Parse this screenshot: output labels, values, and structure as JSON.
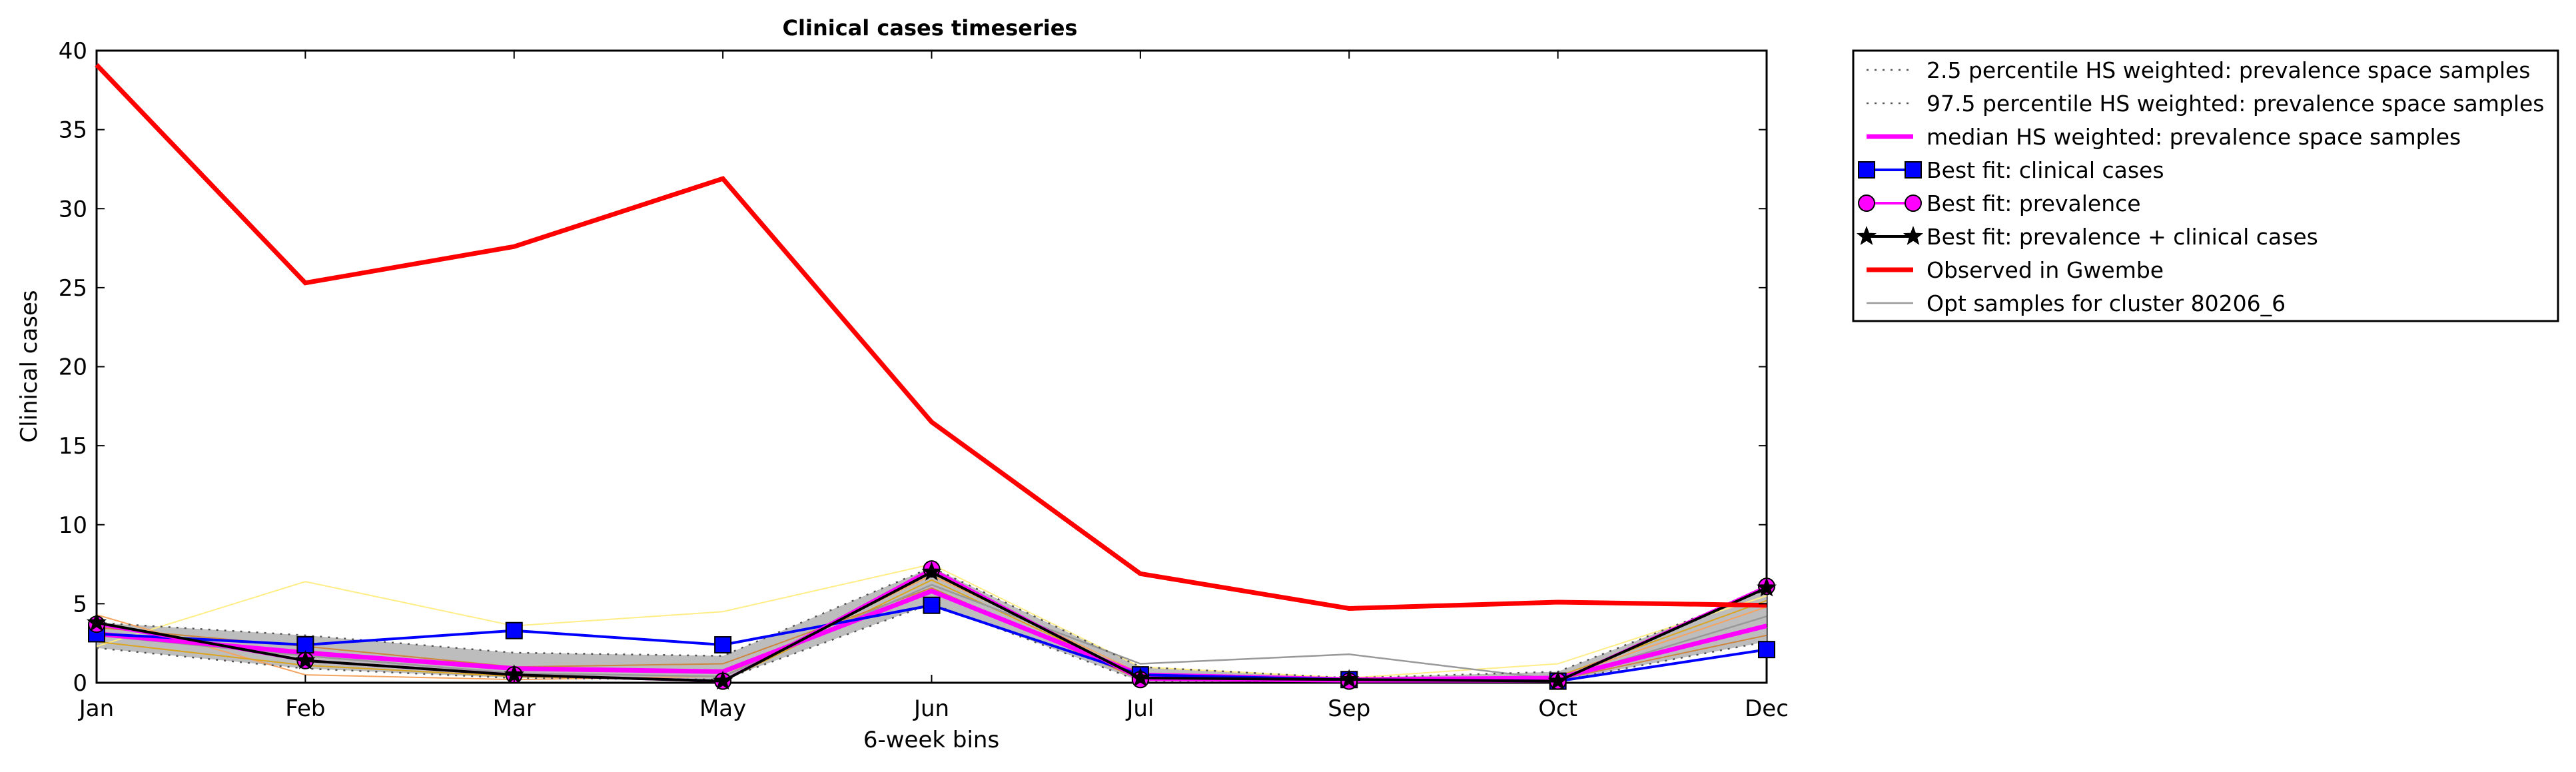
{
  "chart_data": {
    "type": "line",
    "title": "Clinical cases timeseries",
    "xlabel": "6-week bins",
    "ylabel": "Clinical cases",
    "categories": [
      "Jan",
      "Feb",
      "Mar",
      "May",
      "Jun",
      "Jul",
      "Sep",
      "Oct",
      "Dec"
    ],
    "yticks": [
      "0",
      "5",
      "10",
      "15",
      "20",
      "25",
      "30",
      "35",
      "40"
    ],
    "ylim": [
      0,
      40
    ],
    "legend_position": "outside-right",
    "grid": false,
    "series": [
      {
        "name": "2.5 percentile HS weighted: prevalence space samples",
        "color": "#555555",
        "style": "dotted",
        "values": [
          2.2,
          0.9,
          0.3,
          0.2,
          5.0,
          0.1,
          0.1,
          0.1,
          2.6
        ]
      },
      {
        "name": "97.5 percentile HS weighted: prevalence space samples",
        "color": "#555555",
        "style": "dotted",
        "values": [
          3.8,
          3.0,
          1.9,
          1.7,
          7.3,
          1.0,
          0.3,
          0.7,
          5.9
        ]
      },
      {
        "name": "median HS weighted: prevalence space samples",
        "color": "#ff00ff",
        "style": "solid",
        "values": [
          3.1,
          1.9,
          0.9,
          0.7,
          5.8,
          0.5,
          0.2,
          0.3,
          3.6
        ]
      },
      {
        "name": "Best fit: clinical cases",
        "color": "#0000ff",
        "marker": "square",
        "values": [
          3.1,
          2.4,
          3.3,
          2.4,
          4.9,
          0.5,
          0.2,
          0.1,
          2.1
        ]
      },
      {
        "name": "Best fit: prevalence",
        "color": "#ff00ff",
        "marker": "circle",
        "values": [
          3.7,
          1.4,
          0.5,
          0.1,
          7.2,
          0.2,
          0.1,
          0.1,
          6.1
        ]
      },
      {
        "name": "Best fit: prevalence + clinical cases",
        "color": "#000000",
        "marker": "star",
        "values": [
          3.8,
          1.4,
          0.5,
          0.1,
          7.0,
          0.3,
          0.2,
          0.1,
          6.0
        ]
      },
      {
        "name": "Observed in Gwembe",
        "color": "#ff0000",
        "style": "thick",
        "values": [
          39.1,
          25.3,
          27.6,
          31.9,
          16.5,
          6.9,
          4.7,
          5.1,
          4.9
        ]
      },
      {
        "name": "Opt samples for cluster 80206_6",
        "color": "#999999",
        "style": "thin",
        "values": [
          3.0,
          1.7,
          0.6,
          0.4,
          6.2,
          1.2,
          1.8,
          0.2,
          4.2
        ]
      }
    ],
    "extra_samples": [
      {
        "color": "#ffee88",
        "values": [
          2.3,
          6.4,
          3.6,
          4.5,
          7.5,
          1.0,
          0.3,
          1.2,
          5.5
        ]
      },
      {
        "color": "#f4a460",
        "values": [
          4.3,
          0.5,
          0.2,
          0.4,
          6.8,
          0.6,
          0.1,
          0.3,
          4.8
        ]
      },
      {
        "color": "#daa520",
        "values": [
          2.6,
          1.1,
          0.4,
          0.1,
          6.5,
          0.4,
          0.1,
          0.4,
          5.2
        ]
      },
      {
        "color": "#cd853f",
        "values": [
          3.5,
          2.3,
          1.0,
          1.2,
          6.0,
          0.2,
          0.2,
          0.2,
          3.0
        ]
      }
    ]
  }
}
